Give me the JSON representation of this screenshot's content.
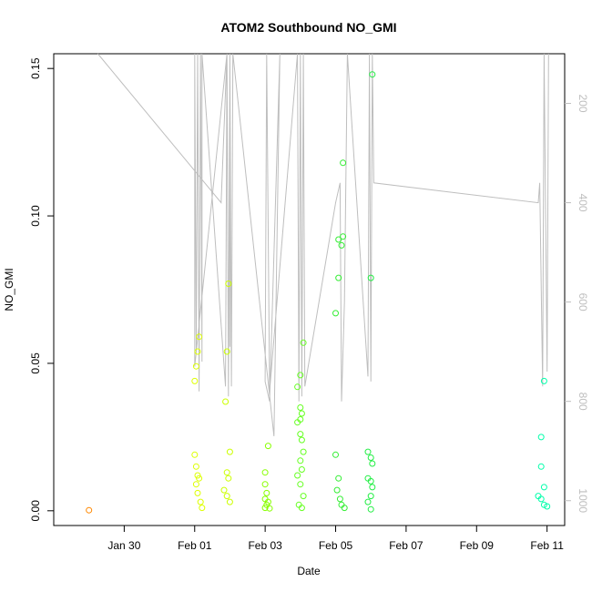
{
  "chart_data": {
    "type": "scatter",
    "title": "ATOM2 Southbound NO_GMI",
    "xlabel": "Date",
    "ylabel": "NO_GMI",
    "xlim": [
      "2016-01-28T00:00",
      "2016-02-11T12:00"
    ],
    "ylim": [
      -0.005,
      0.155
    ],
    "x_ticks": [
      {
        "label": "Jan 30",
        "value": "2016-01-30"
      },
      {
        "label": "Feb 01",
        "value": "2016-02-01"
      },
      {
        "label": "Feb 03",
        "value": "2016-02-03"
      },
      {
        "label": "Feb 05",
        "value": "2016-02-05"
      },
      {
        "label": "Feb 07",
        "value": "2016-02-07"
      },
      {
        "label": "Feb 09",
        "value": "2016-02-09"
      },
      {
        "label": "Feb 11",
        "value": "2016-02-11"
      }
    ],
    "y_ticks": [
      {
        "label": "0.00",
        "value": 0.0
      },
      {
        "label": "0.05",
        "value": 0.05
      },
      {
        "label": "0.10",
        "value": 0.1
      },
      {
        "label": "0.15",
        "value": 0.15
      }
    ],
    "right_axis": {
      "range": [
        1050,
        100
      ],
      "ticks": [
        {
          "label": "200",
          "value": 200
        },
        {
          "label": "400",
          "value": 400
        },
        {
          "label": "600",
          "value": 600
        },
        {
          "label": "800",
          "value": 800
        },
        {
          "label": "1000",
          "value": 1000
        }
      ],
      "color": "#bebebe"
    },
    "grid": false,
    "points": [
      {
        "x": "2016-01-29T00:00",
        "y": 0.0002,
        "color": "#ff8800"
      },
      {
        "x": "2016-02-01T00:00",
        "y": 0.044,
        "color": "#ddff00"
      },
      {
        "x": "2016-02-01T01:00",
        "y": 0.049,
        "color": "#ddff00"
      },
      {
        "x": "2016-02-01T02:00",
        "y": 0.054,
        "color": "#ddff00"
      },
      {
        "x": "2016-02-01T03:00",
        "y": 0.059,
        "color": "#ddff00"
      },
      {
        "x": "2016-02-01T00:00",
        "y": 0.019,
        "color": "#ddff00"
      },
      {
        "x": "2016-02-01T01:00",
        "y": 0.015,
        "color": "#ddff00"
      },
      {
        "x": "2016-02-01T02:00",
        "y": 0.012,
        "color": "#ddff00"
      },
      {
        "x": "2016-02-01T03:00",
        "y": 0.011,
        "color": "#ddff00"
      },
      {
        "x": "2016-02-01T01:00",
        "y": 0.009,
        "color": "#ddff00"
      },
      {
        "x": "2016-02-01T02:00",
        "y": 0.006,
        "color": "#ddff00"
      },
      {
        "x": "2016-02-01T04:00",
        "y": 0.003,
        "color": "#ddff00"
      },
      {
        "x": "2016-02-01T05:00",
        "y": 0.001,
        "color": "#ddff00"
      },
      {
        "x": "2016-02-01T21:00",
        "y": 0.037,
        "color": "#ccff00"
      },
      {
        "x": "2016-02-01T22:00",
        "y": 0.054,
        "color": "#ccff00"
      },
      {
        "x": "2016-02-01T23:00",
        "y": 0.077,
        "color": "#ccff00"
      },
      {
        "x": "2016-02-02T00:00",
        "y": 0.02,
        "color": "#ccff00"
      },
      {
        "x": "2016-02-01T22:00",
        "y": 0.013,
        "color": "#ccff00"
      },
      {
        "x": "2016-02-01T23:00",
        "y": 0.011,
        "color": "#ccff00"
      },
      {
        "x": "2016-02-01T20:00",
        "y": 0.007,
        "color": "#ccff00"
      },
      {
        "x": "2016-02-01T22:00",
        "y": 0.005,
        "color": "#ccff00"
      },
      {
        "x": "2016-02-02T00:00",
        "y": 0.003,
        "color": "#ccff00"
      },
      {
        "x": "2016-02-03T00:00",
        "y": 0.013,
        "color": "#88ff00"
      },
      {
        "x": "2016-02-03T02:00",
        "y": 0.022,
        "color": "#88ff00"
      },
      {
        "x": "2016-02-03T00:00",
        "y": 0.009,
        "color": "#88ff00"
      },
      {
        "x": "2016-02-03T01:00",
        "y": 0.006,
        "color": "#88ff00"
      },
      {
        "x": "2016-02-03T00:00",
        "y": 0.004,
        "color": "#88ff00"
      },
      {
        "x": "2016-02-03T02:00",
        "y": 0.003,
        "color": "#88ff00"
      },
      {
        "x": "2016-02-03T01:00",
        "y": 0.002,
        "color": "#88ff00"
      },
      {
        "x": "2016-02-03T00:00",
        "y": 0.001,
        "color": "#88ff00"
      },
      {
        "x": "2016-02-03T03:00",
        "y": 0.0008,
        "color": "#88ff00"
      },
      {
        "x": "2016-02-03T22:00",
        "y": 0.042,
        "color": "#66ff22"
      },
      {
        "x": "2016-02-04T00:00",
        "y": 0.046,
        "color": "#66ff22"
      },
      {
        "x": "2016-02-04T02:00",
        "y": 0.057,
        "color": "#66ff22"
      },
      {
        "x": "2016-02-04T00:00",
        "y": 0.035,
        "color": "#66ff22"
      },
      {
        "x": "2016-02-04T01:00",
        "y": 0.033,
        "color": "#66ff22"
      },
      {
        "x": "2016-02-04T00:00",
        "y": 0.031,
        "color": "#66ff22"
      },
      {
        "x": "2016-02-03T22:00",
        "y": 0.03,
        "color": "#66ff22"
      },
      {
        "x": "2016-02-04T00:00",
        "y": 0.026,
        "color": "#66ff22"
      },
      {
        "x": "2016-02-04T01:00",
        "y": 0.024,
        "color": "#66ff22"
      },
      {
        "x": "2016-02-04T02:00",
        "y": 0.02,
        "color": "#66ff22"
      },
      {
        "x": "2016-02-04T00:00",
        "y": 0.017,
        "color": "#66ff22"
      },
      {
        "x": "2016-02-04T01:00",
        "y": 0.014,
        "color": "#66ff22"
      },
      {
        "x": "2016-02-03T22:00",
        "y": 0.012,
        "color": "#66ff22"
      },
      {
        "x": "2016-02-04T00:00",
        "y": 0.009,
        "color": "#66ff22"
      },
      {
        "x": "2016-02-04T02:00",
        "y": 0.005,
        "color": "#66ff22"
      },
      {
        "x": "2016-02-03T23:00",
        "y": 0.002,
        "color": "#66ff22"
      },
      {
        "x": "2016-02-04T01:00",
        "y": 0.001,
        "color": "#66ff22"
      },
      {
        "x": "2016-02-05T00:00",
        "y": 0.019,
        "color": "#33ee33"
      },
      {
        "x": "2016-02-05T00:00",
        "y": 0.067,
        "color": "#33ee33"
      },
      {
        "x": "2016-02-05T02:00",
        "y": 0.079,
        "color": "#33ee33"
      },
      {
        "x": "2016-02-05T02:00",
        "y": 0.092,
        "color": "#33ee33"
      },
      {
        "x": "2016-02-05T04:00",
        "y": 0.09,
        "color": "#33ee33"
      },
      {
        "x": "2016-02-05T05:00",
        "y": 0.093,
        "color": "#33ee33"
      },
      {
        "x": "2016-02-05T05:00",
        "y": 0.118,
        "color": "#33ee33"
      },
      {
        "x": "2016-02-05T02:00",
        "y": 0.011,
        "color": "#33ee33"
      },
      {
        "x": "2016-02-05T01:00",
        "y": 0.007,
        "color": "#33ee33"
      },
      {
        "x": "2016-02-05T03:00",
        "y": 0.004,
        "color": "#33ee33"
      },
      {
        "x": "2016-02-05T04:00",
        "y": 0.002,
        "color": "#33ee33"
      },
      {
        "x": "2016-02-05T06:00",
        "y": 0.001,
        "color": "#33ee33"
      },
      {
        "x": "2016-02-05T22:00",
        "y": 0.02,
        "color": "#22ee44"
      },
      {
        "x": "2016-02-06T00:00",
        "y": 0.018,
        "color": "#22ee44"
      },
      {
        "x": "2016-02-06T01:00",
        "y": 0.016,
        "color": "#22ee44"
      },
      {
        "x": "2016-02-05T22:00",
        "y": 0.011,
        "color": "#22ee44"
      },
      {
        "x": "2016-02-06T00:00",
        "y": 0.01,
        "color": "#22ee44"
      },
      {
        "x": "2016-02-06T01:00",
        "y": 0.008,
        "color": "#22ee44"
      },
      {
        "x": "2016-02-06T00:00",
        "y": 0.005,
        "color": "#22ee44"
      },
      {
        "x": "2016-02-05T22:00",
        "y": 0.003,
        "color": "#22ee44"
      },
      {
        "x": "2016-02-06T00:00",
        "y": 0.0005,
        "color": "#22ee44"
      },
      {
        "x": "2016-02-06T00:00",
        "y": 0.079,
        "color": "#22ee44"
      },
      {
        "x": "2016-02-06T01:00",
        "y": 0.148,
        "color": "#22ee44"
      },
      {
        "x": "2016-02-10T20:00",
        "y": 0.025,
        "color": "#00ffaa"
      },
      {
        "x": "2016-02-10T20:00",
        "y": 0.015,
        "color": "#00ffaa"
      },
      {
        "x": "2016-02-10T22:00",
        "y": 0.044,
        "color": "#00ffaa"
      },
      {
        "x": "2016-02-10T22:00",
        "y": 0.008,
        "color": "#00ffaa"
      },
      {
        "x": "2016-02-10T18:00",
        "y": 0.005,
        "color": "#00ffaa"
      },
      {
        "x": "2016-02-10T20:00",
        "y": 0.004,
        "color": "#00ffaa"
      },
      {
        "x": "2016-02-10T22:00",
        "y": 0.002,
        "color": "#00ffaa"
      },
      {
        "x": "2016-02-11T00:00",
        "y": 0.0015,
        "color": "#00ffaa"
      }
    ],
    "pressure_series": {
      "color": "#bebebe",
      "x": [
        "2016-01-29T06:00",
        "2016-02-01T18:00",
        "2016-02-01T22:00",
        "2016-02-01T00:00",
        "2016-02-01T00:00",
        "2016-02-01T01:00",
        "2016-02-01T02:00",
        "2016-02-01T03:00",
        "2016-02-01T04:00",
        "2016-02-01T05:00",
        "2016-02-01T05:00",
        "2016-02-01T21:00",
        "2016-02-01T22:00",
        "2016-02-01T23:00",
        "2016-02-02T00:00",
        "2016-02-02T00:00",
        "2016-02-02T00:00",
        "2016-02-02T01:00",
        "2016-02-02T02:00",
        "2016-02-03T06:00",
        "2016-02-03T10:00",
        "2016-02-03T03:00",
        "2016-02-03T00:00",
        "2016-02-03T01:00",
        "2016-02-03T03:00",
        "2016-02-03T22:00",
        "2016-02-03T23:00",
        "2016-02-04T00:00",
        "2016-02-04T01:00",
        "2016-02-04T02:00",
        "2016-02-04T03:00",
        "2016-02-05T00:00",
        "2016-02-05T03:00",
        "2016-02-05T04:00",
        "2016-02-05T06:00",
        "2016-02-05T08:00",
        "2016-02-05T22:00",
        "2016-02-05T23:00",
        "2016-02-06T00:00",
        "2016-02-06T01:00",
        "2016-02-06T02:00",
        "2016-02-10T18:00",
        "2016-02-10T19:00",
        "2016-02-10T21:00",
        "2016-02-10T22:00",
        "2016-02-11T00:00",
        "2016-02-11T01:00"
      ],
      "y": [
        100,
        400,
        100,
        730,
        100,
        700,
        100,
        780,
        100,
        720,
        100,
        770,
        100,
        790,
        100,
        690,
        100,
        770,
        100,
        870,
        100,
        800,
        760,
        100,
        780,
        100,
        800,
        100,
        790,
        100,
        770,
        400,
        360,
        800,
        600,
        100,
        750,
        100,
        760,
        100,
        360,
        400,
        360,
        770,
        100,
        740,
        100
      ]
    }
  }
}
